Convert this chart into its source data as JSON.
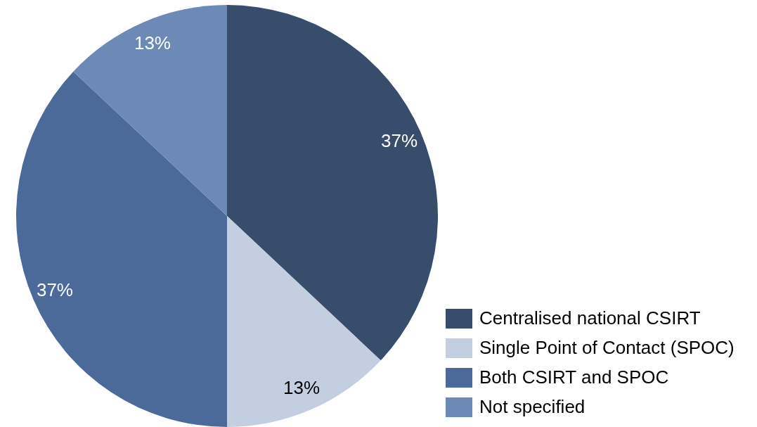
{
  "chart_data": {
    "type": "pie",
    "categories": [
      "Centralised national CSIRT",
      "Single Point of Contact (SPOC)",
      "Both CSIRT and SPOC",
      "Not specified"
    ],
    "values": [
      37,
      13,
      37,
      13
    ],
    "colors": [
      "#384c6c",
      "#c4cee1",
      "#4b6a99",
      "#6d8ab6"
    ],
    "value_labels": [
      "37%",
      "13%",
      "37%",
      "13%"
    ],
    "legend": "bottom right"
  }
}
